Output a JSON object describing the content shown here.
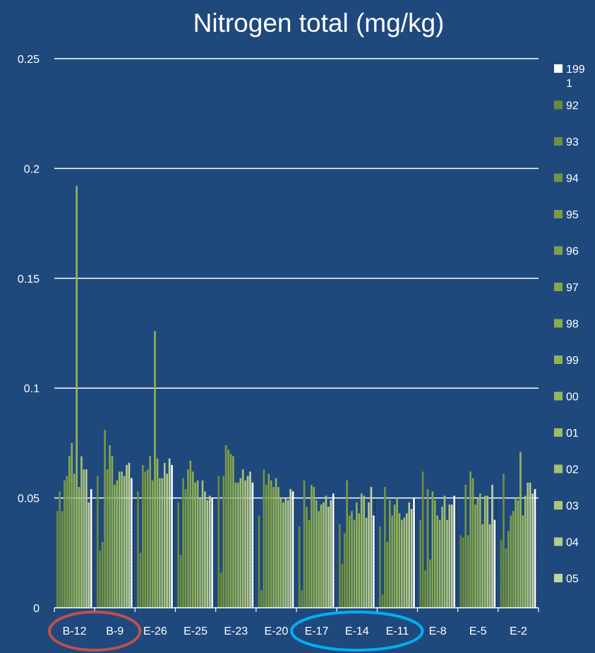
{
  "colors": {
    "background": "#1f497d",
    "grid": "#ffffff",
    "highlight_red": "#c0504d",
    "highlight_blue": "#00b0f0",
    "series": [
      "#ffffff",
      "#6a8a3a",
      "#6f8f3c",
      "#74943f",
      "#7a9a43",
      "#80a047",
      "#86a64b",
      "#8cac50",
      "#92b255",
      "#98b65c",
      "#9ebb65",
      "#a6c070",
      "#aec67c",
      "#b8cc8b",
      "#c4d59c"
    ]
  },
  "chart_data": {
    "type": "bar",
    "title": "Nitrogen total (mg/kg)",
    "xlabel": "",
    "ylabel": "",
    "ylim": [
      0,
      0.25
    ],
    "yticks": [
      "0",
      "0.05",
      "0.1",
      "0.15",
      "0.2",
      "0.25"
    ],
    "ytick_values": [
      0,
      0.05,
      0.1,
      0.15,
      0.2,
      0.25
    ],
    "grid": true,
    "legend_position": "right",
    "categories": [
      "B-12",
      "B-9",
      "E-26",
      "E-25",
      "E-23",
      "E-20",
      "E-17",
      "E-14",
      "E-11",
      "E-8",
      "E-5",
      "E-2"
    ],
    "legend_labels": [
      "1991",
      "92",
      "93",
      "94",
      "95",
      "96",
      "97",
      "98",
      "99",
      "00",
      "01",
      "02",
      "03",
      "04",
      "05"
    ],
    "series": [
      {
        "name": "1991",
        "values": [
          0.044,
          0.06,
          0.053,
          0.048,
          0.06,
          0.042,
          0.037,
          0.038,
          0.037,
          0.04,
          0.033,
          0.031
        ]
      },
      {
        "name": "92",
        "values": [
          0.053,
          0.026,
          0.025,
          0.024,
          0.016,
          0.008,
          0.008,
          0.02,
          0.006,
          0.062,
          0.032,
          0.061
        ]
      },
      {
        "name": "93",
        "values": [
          0.044,
          0.03,
          0.065,
          0.059,
          0.06,
          0.063,
          0.058,
          0.034,
          0.055,
          0.017,
          0.056,
          0.027
        ]
      },
      {
        "name": "94",
        "values": [
          0.058,
          0.081,
          0.062,
          0.054,
          0.074,
          0.056,
          0.046,
          0.058,
          0.03,
          0.054,
          0.033,
          0.035
        ]
      },
      {
        "name": "95",
        "values": [
          0.06,
          0.063,
          0.063,
          0.063,
          0.072,
          0.061,
          0.04,
          0.042,
          0.049,
          0.022,
          0.062,
          0.042
        ]
      },
      {
        "name": "96",
        "values": [
          0.069,
          0.074,
          0.069,
          0.067,
          0.07,
          0.058,
          0.056,
          0.044,
          0.042,
          0.053,
          0.059,
          0.044
        ]
      },
      {
        "name": "97",
        "values": [
          0.075,
          0.069,
          0.058,
          0.062,
          0.069,
          0.055,
          0.055,
          0.04,
          0.047,
          0.049,
          0.047,
          0.05
        ]
      },
      {
        "name": "98",
        "values": [
          0.061,
          0.056,
          0.126,
          0.057,
          0.057,
          0.059,
          0.049,
          0.048,
          0.05,
          0.042,
          0.05,
          0.049
        ]
      },
      {
        "name": "99",
        "values": [
          0.192,
          0.058,
          0.068,
          0.058,
          0.057,
          0.055,
          0.044,
          0.043,
          0.043,
          0.04,
          0.052,
          0.071
        ]
      },
      {
        "name": "00",
        "values": [
          0.055,
          0.062,
          0.059,
          0.05,
          0.059,
          0.05,
          0.047,
          0.052,
          0.04,
          0.046,
          0.038,
          0.042
        ]
      },
      {
        "name": "01",
        "values": [
          0.069,
          0.062,
          0.059,
          0.058,
          0.063,
          0.048,
          0.048,
          0.051,
          0.041,
          0.051,
          0.051,
          0.051
        ]
      },
      {
        "name": "02",
        "values": [
          0.063,
          0.06,
          0.066,
          0.053,
          0.058,
          0.05,
          0.051,
          0.041,
          0.043,
          0.04,
          0.051,
          0.057
        ]
      },
      {
        "name": "03",
        "values": [
          0.063,
          0.065,
          0.061,
          0.049,
          0.06,
          0.049,
          0.046,
          0.048,
          0.048,
          0.047,
          0.038,
          0.057
        ]
      },
      {
        "name": "04",
        "values": [
          0.048,
          0.066,
          0.068,
          0.051,
          0.062,
          0.054,
          0.049,
          0.055,
          0.045,
          0.047,
          0.056,
          0.052
        ]
      },
      {
        "name": "05",
        "values": [
          0.054,
          0.059,
          0.065,
          0.05,
          0.057,
          0.053,
          0.052,
          0.042,
          0.05,
          0.051,
          0.04,
          0.054
        ]
      }
    ],
    "annotations": [
      {
        "type": "ellipse",
        "color": "#c0504d",
        "covers": [
          "B-12",
          "B-9"
        ]
      },
      {
        "type": "ellipse",
        "color": "#00b0f0",
        "covers": [
          "E-17",
          "E-14",
          "E-11"
        ]
      }
    ]
  }
}
